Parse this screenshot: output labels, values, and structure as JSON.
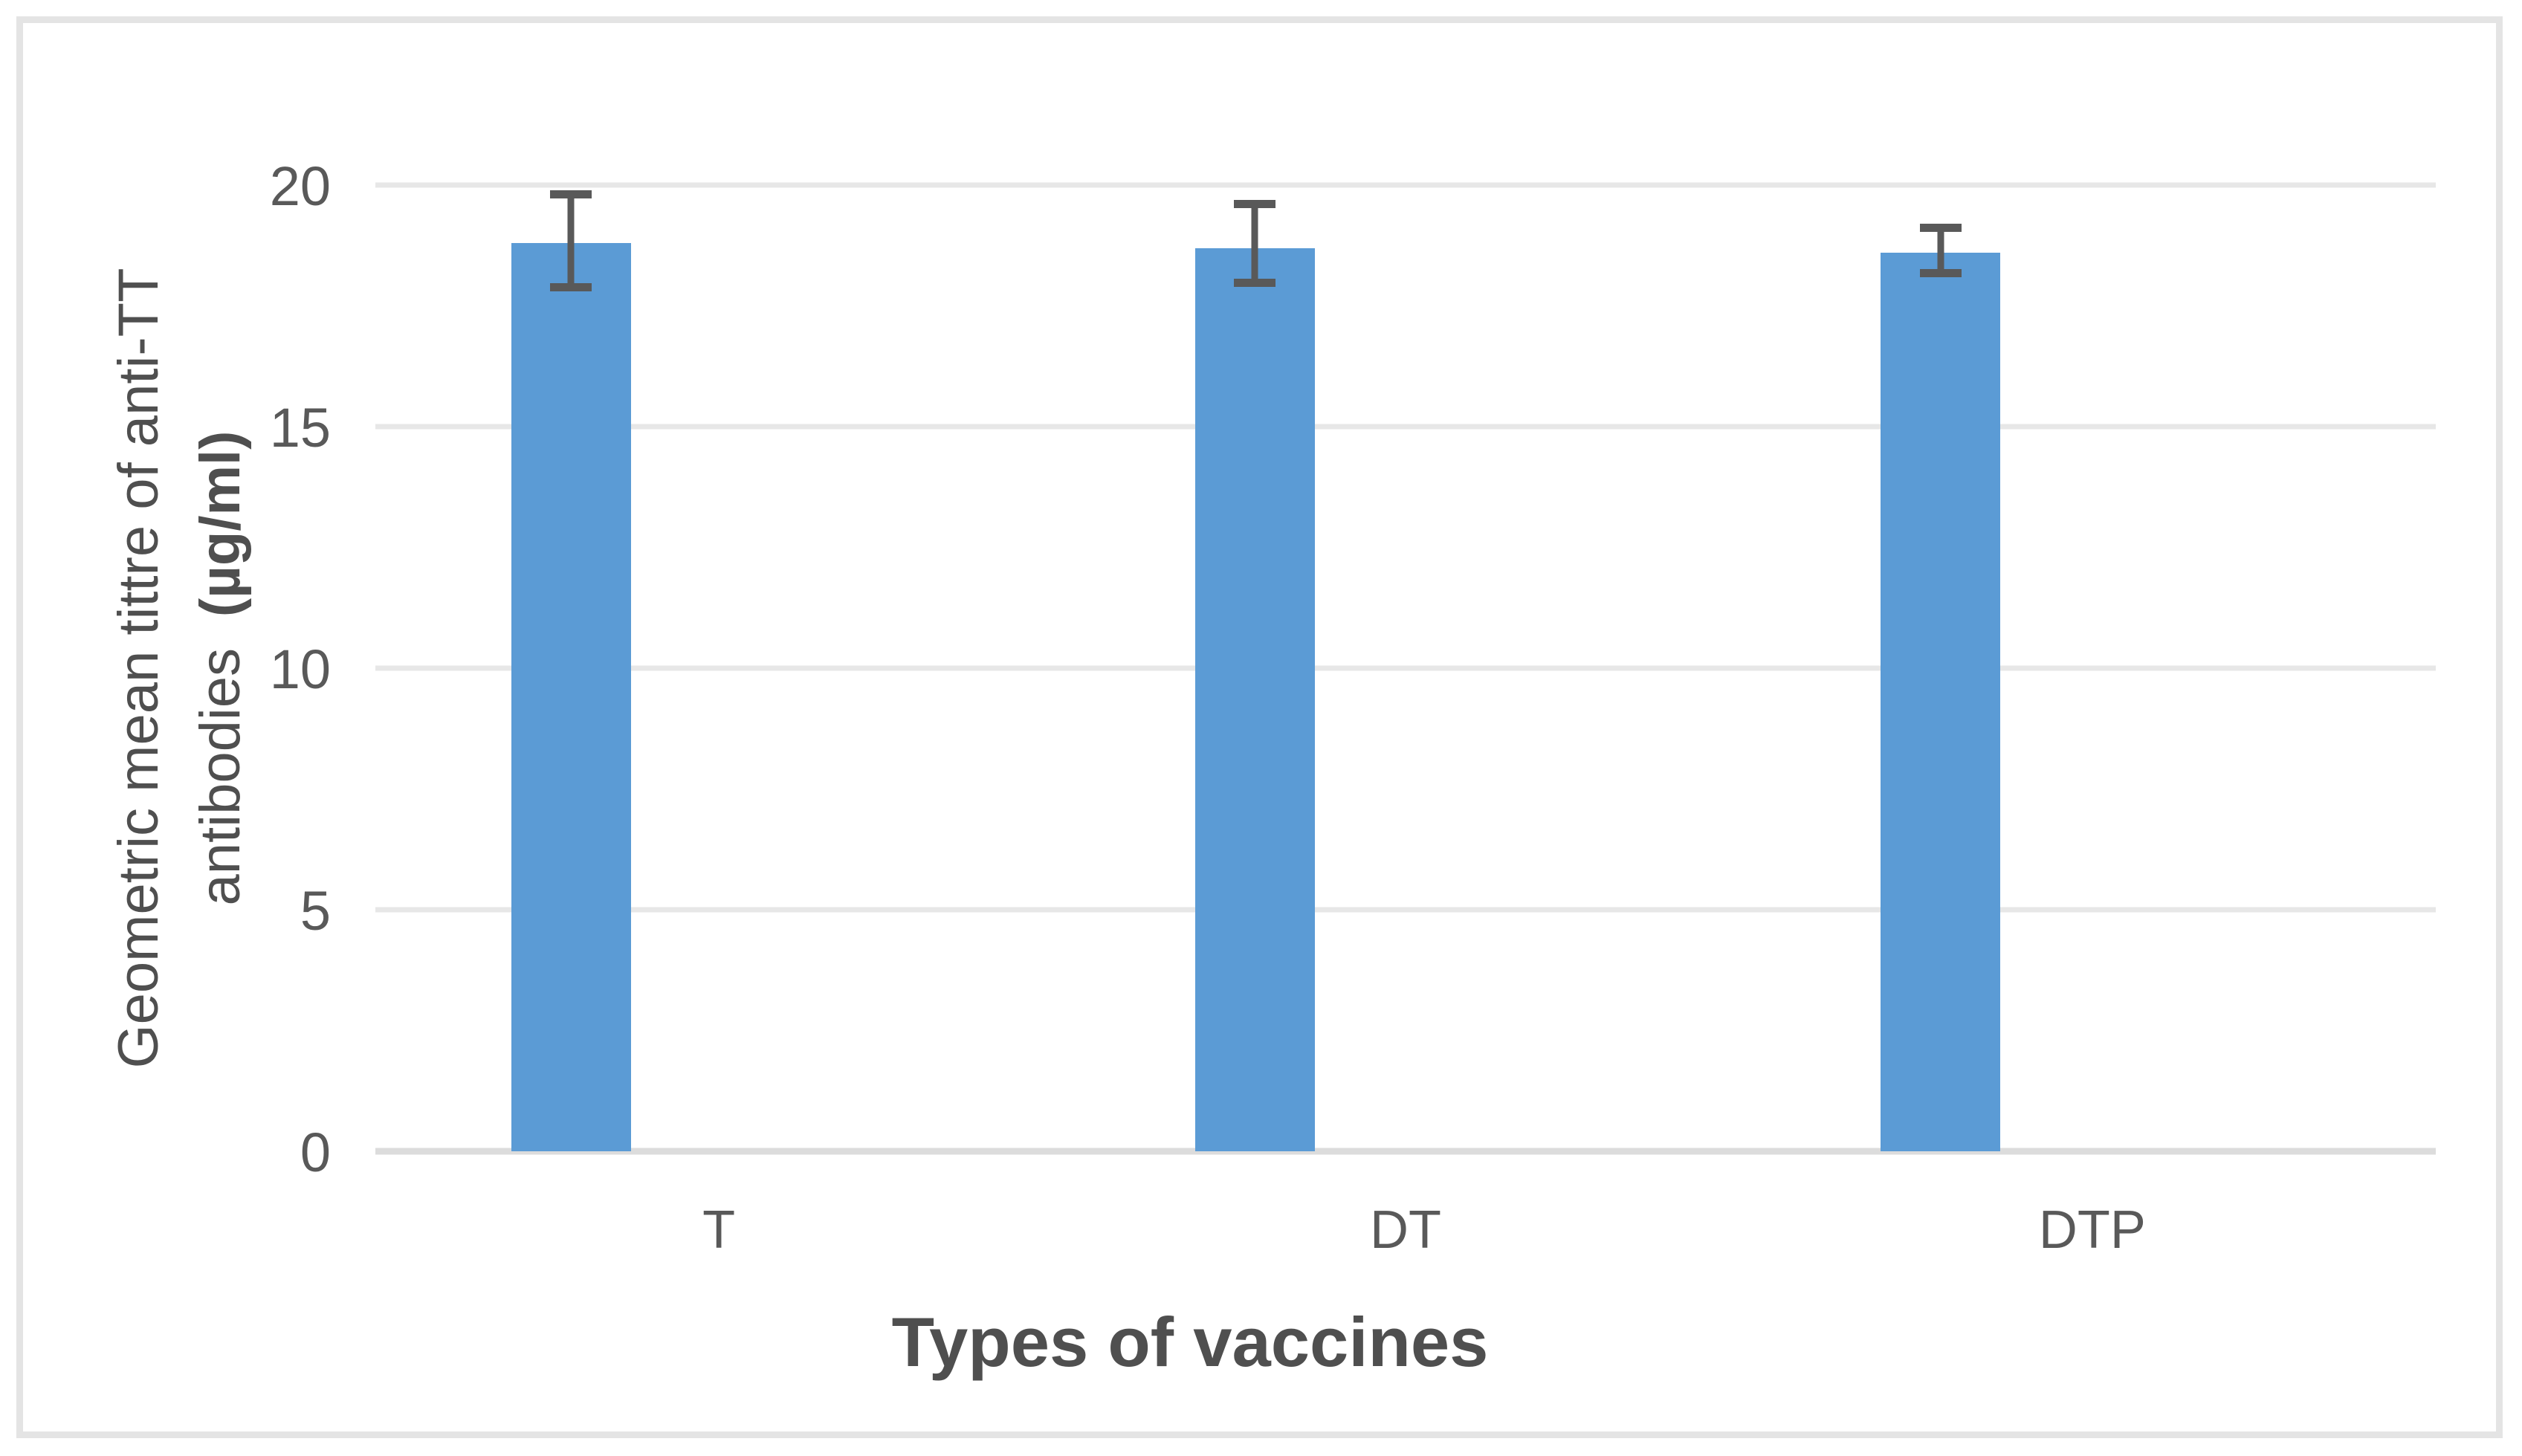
{
  "chart_data": {
    "type": "bar",
    "categories": [
      "T",
      "DT",
      "DTP"
    ],
    "series": [
      {
        "values": [
          18.8,
          18.7,
          18.6
        ],
        "error_whisker_top": [
          19.9,
          19.7,
          19.2
        ],
        "error_whisker_bottom": [
          17.8,
          17.9,
          18.1
        ]
      }
    ],
    "xlabel": "Types of vaccines",
    "ylabel_line1": "Geometric mean tittre of anti-TT",
    "ylabel_line2_regular": "antibodies",
    "ylabel_line2_bold": "(µg/ml)",
    "ylim": [
      0,
      20
    ],
    "y_ticks": [
      0,
      5,
      10,
      15,
      20
    ],
    "grid": true,
    "legend": false,
    "colors": {
      "bar": "#5B9BD5",
      "error_bar": "#595959",
      "gridline": "#e7e7e7",
      "axis_line": "#dcdcdc",
      "tick_label": "#595959",
      "axis_title": "#4f4f4f",
      "frame_border": "#e4e4e4"
    },
    "layout": {
      "bar_center_pct": [
        9.49,
        42.68,
        75.97
      ],
      "label_center_pct": [
        16.67,
        50.0,
        83.33
      ],
      "bar_width_pct": 5.81,
      "gridlines_horizontal": true,
      "legend_position": "none"
    }
  }
}
